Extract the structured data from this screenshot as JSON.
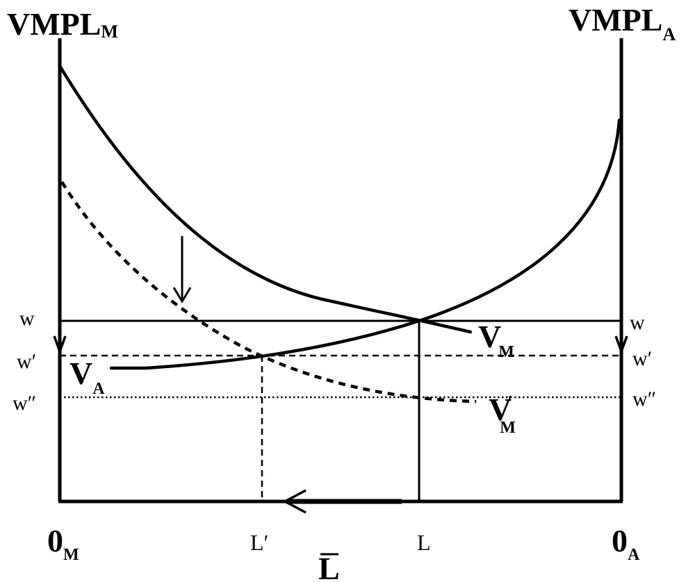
{
  "labels": {
    "left_axis_main": "VMPL",
    "left_axis_sub": "M",
    "right_axis_main": "VMPL",
    "right_axis_sub": "A",
    "w": "w",
    "w_prime": "w′",
    "w_double_prime": "w″",
    "curve_va_main": "V",
    "curve_va_sub": "A",
    "curve_vm_main": "V",
    "curve_vm_sub": "M",
    "curve_vm_prime_main": "V",
    "curve_vm_prime_mark": "′",
    "curve_vm_prime_sub": "M",
    "origin_m_main": "0",
    "origin_m_sub": "M",
    "l_prime": "L′",
    "l": "L",
    "origin_a_main": "0",
    "origin_a_sub": "A",
    "total_labor": "L"
  }
}
